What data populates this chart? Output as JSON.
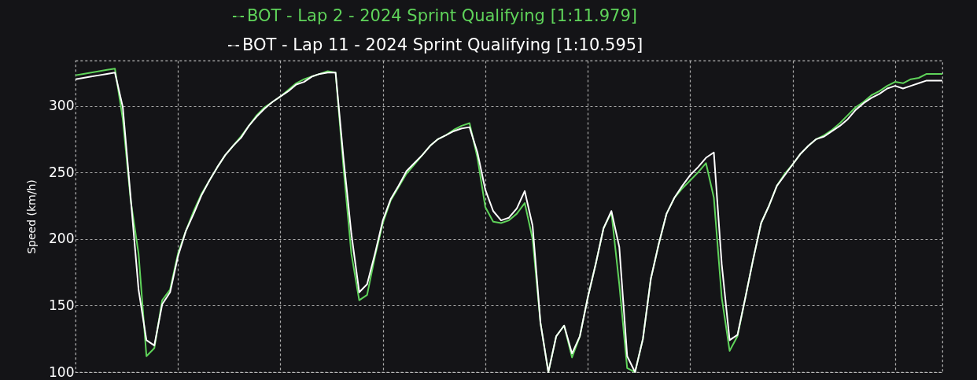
{
  "chart_data": {
    "type": "line",
    "ylabel": "Speed (km/h)",
    "categories": [
      null,
      null,
      null,
      null,
      null,
      null,
      null,
      null,
      null,
      null,
      null,
      null,
      null,
      null,
      null,
      null,
      null,
      null,
      null,
      null,
      null,
      null,
      null,
      null,
      null,
      null,
      null,
      null,
      null,
      null,
      null,
      null,
      null,
      null,
      null,
      null,
      null,
      null,
      null,
      null,
      null,
      null,
      null,
      null,
      null,
      null,
      null,
      null,
      null,
      null,
      null,
      null,
      null,
      null,
      null,
      null,
      null,
      null,
      null,
      null,
      null,
      null,
      null,
      null,
      null,
      null,
      null,
      null,
      null,
      null,
      null,
      null,
      null,
      null,
      null,
      null,
      null,
      null,
      null,
      null,
      null,
      null,
      null,
      null,
      null,
      null,
      null,
      null,
      null,
      null,
      null,
      null,
      null,
      null,
      null,
      null,
      null,
      null,
      null,
      null,
      null,
      null,
      null,
      null,
      null,
      null,
      null,
      null,
      null,
      null,
      null
    ],
    "series": [
      {
        "name": "BOT - Lap 2 - 2024 Sprint Qualifying [1:11.979]",
        "color": "#5fd35a",
        "values": [
          323,
          324,
          325,
          326,
          327,
          328,
          290,
          229,
          189,
          112,
          118,
          154,
          162,
          189,
          206,
          221,
          234,
          244,
          254,
          263,
          270,
          277,
          285,
          293,
          299,
          303,
          307,
          312,
          317,
          320,
          322,
          324,
          326,
          325,
          254,
          189,
          154,
          158,
          187,
          212,
          229,
          239,
          249,
          256,
          263,
          270,
          275,
          278,
          282,
          285,
          287,
          261,
          224,
          213,
          212,
          214,
          219,
          227,
          200,
          137,
          100,
          127,
          135,
          111,
          127,
          156,
          181,
          208,
          220,
          166,
          103,
          100,
          125,
          170,
          196,
          219,
          231,
          238,
          244,
          250,
          257,
          231,
          156,
          116,
          127,
          156,
          185,
          212,
          225,
          240,
          249,
          256,
          264,
          270,
          275,
          278,
          282,
          287,
          293,
          299,
          303,
          308,
          311,
          315,
          318,
          317,
          320,
          321,
          324,
          324,
          324
        ]
      },
      {
        "name": "BOT - Lap 11 - 2024 Sprint Qualifying [1:10.595]",
        "color": "#ffffff",
        "values": [
          320,
          321,
          322,
          323,
          324,
          325,
          299,
          231,
          162,
          124,
          120,
          151,
          160,
          187,
          206,
          219,
          233,
          244,
          254,
          263,
          270,
          276,
          285,
          292,
          298,
          303,
          307,
          311,
          316,
          318,
          322,
          324,
          325,
          325,
          261,
          204,
          160,
          166,
          189,
          214,
          230,
          240,
          251,
          257,
          263,
          270,
          275,
          278,
          281,
          283,
          284,
          265,
          237,
          221,
          214,
          216,
          223,
          236,
          210,
          137,
          100,
          127,
          135,
          114,
          127,
          156,
          181,
          208,
          221,
          194,
          112,
          100,
          125,
          170,
          196,
          219,
          231,
          240,
          248,
          254,
          261,
          265,
          181,
          124,
          128,
          156,
          185,
          212,
          225,
          240,
          248,
          256,
          264,
          270,
          275,
          277,
          281,
          285,
          290,
          297,
          302,
          306,
          309,
          313,
          315,
          313,
          315,
          317,
          319,
          319,
          319
        ]
      }
    ],
    "ylim": [
      100,
      334
    ],
    "yticks": [
      100,
      150,
      200,
      250,
      300
    ],
    "grid": true,
    "legend": "top",
    "marker": "none",
    "line_style": "solid",
    "tick_labels": "y"
  }
}
